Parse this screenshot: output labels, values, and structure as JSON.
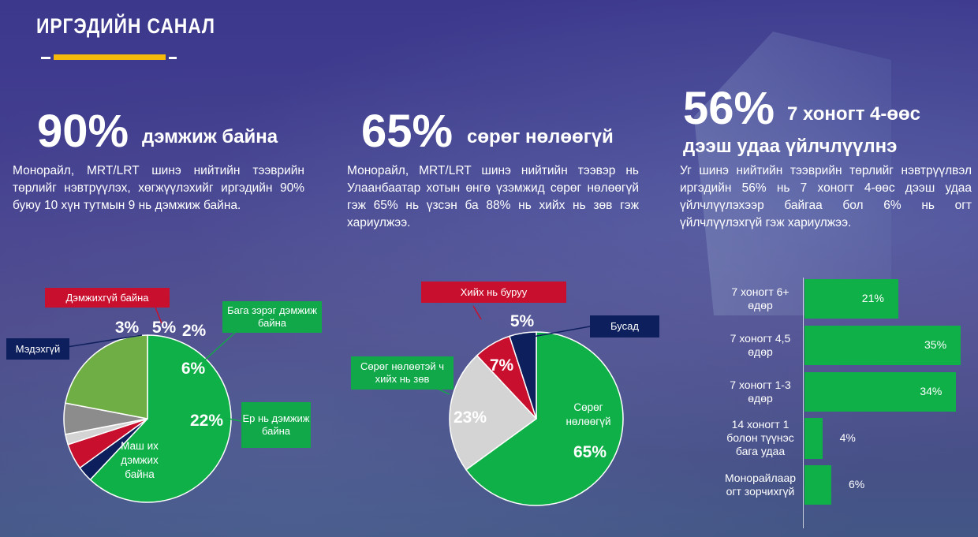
{
  "header": {
    "title": "ИРГЭДИЙН САНАЛ"
  },
  "stats": [
    {
      "value": "90%",
      "label": "дэмжиж байна",
      "text": "Монорайл, MRT/LRT шинэ нийтийн тээврийн төрлийг нэвтрүүлэх, хөгжүүлэхийг иргэдийн 90% буюу 10 хүн тутмын 9 нь дэмжиж байна."
    },
    {
      "value": "65%",
      "label": "сөрөг нөлөөгүй",
      "text": "Монорайл, MRT/LRT шинэ нийтийн тээвэр нь Улаанбаатар хотын өнгө үзэмжид сөрөг нөлөөгүй гэж 65% нь үзсэн ба 88% нь хийх нь зөв гэж хариулжээ."
    },
    {
      "value": "56%",
      "label_line1": "7 хоногт 4-өөс",
      "label_line2": "дээш удаа үйлчлүүлнэ",
      "text": "Уг шинэ нийтийн тээврийн төрлийг нэвтрүүлвэл иргэдийн 56% нь 7 хоногт 4-өөс дээш удаа үйлчлүүлэхээр байгаа бол 6% нь огт үйлчлүүлэхгүй гэж хариулжээ."
    }
  ],
  "chart_data": [
    {
      "type": "pie",
      "slices": [
        {
          "name": "Маш их дэмжих байна",
          "value": 62,
          "label": "62%",
          "color": "#10b048"
        },
        {
          "name": "Мэдэхгүй",
          "value": 3,
          "label": "3%",
          "color": "#0d1f5c"
        },
        {
          "name": "Дэмжихгүй байна",
          "value": 5,
          "label": "5%",
          "color": "#c8102e"
        },
        {
          "name": "",
          "value": 2,
          "label": "2%",
          "color": "#d4d4d4"
        },
        {
          "name": "Бага зэрэг дэмжиж байна",
          "value": 6,
          "label": "6%",
          "color": "#8c8c8c"
        },
        {
          "name": "Ер нь дэмжиж байна",
          "value": 22,
          "label": "22%",
          "color": "#6fae45"
        }
      ],
      "annotations": {
        "slice_inner_label": "Маш их дэмжих байна",
        "callouts": [
          "Дэмжихгүй байна",
          "Бага зэрэг дэмжиж байна",
          "Мэдэхгүй",
          "Ер нь дэмжиж байна"
        ]
      }
    },
    {
      "type": "pie",
      "slices": [
        {
          "name": "Сөрөг нөлөөгүй",
          "value": 65,
          "label": "65%",
          "color": "#10b048"
        },
        {
          "name": "Сөрөг нөлөөтэй ч хийх нь зөв",
          "value": 23,
          "label": "23%",
          "color": "#d4d4d4"
        },
        {
          "name": "Хийх нь буруу",
          "value": 7,
          "label": "7%",
          "color": "#c8102e"
        },
        {
          "name": "Бусад",
          "value": 5,
          "label": "5%",
          "color": "#0d1f5c"
        }
      ],
      "annotations": {
        "slice_inner_label": "Сөрөг нөлөөгүй",
        "callouts": [
          "Хийх нь буруу",
          "Бусад",
          "Сөрөг нөлөөтэй ч хийх нь зөв"
        ]
      }
    },
    {
      "type": "bar",
      "orientation": "horizontal",
      "categories": [
        "7 хоногт 6+ өдөр",
        "7 хоногт 4,5 өдөр",
        "7 хоногт 1-3 өдөр",
        "14 хоногт 1 болон түүнэс бага удаа",
        "Монорайлаар огт зорчихгүй"
      ],
      "values": [
        21,
        35,
        34,
        4,
        6
      ],
      "labels": [
        "21%",
        "35%",
        "34%",
        "4%",
        "6%"
      ],
      "color": "#10b048"
    }
  ]
}
